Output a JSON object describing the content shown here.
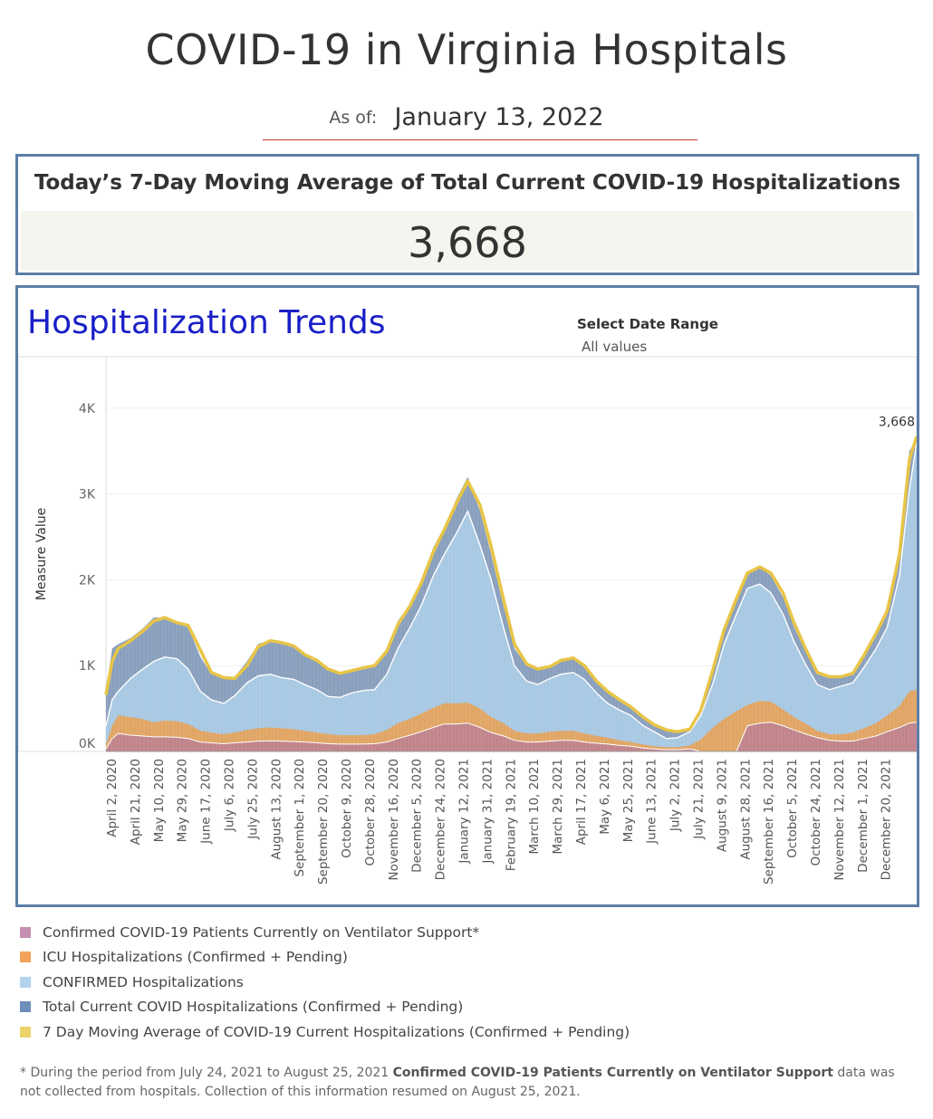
{
  "header": {
    "title": "COVID-19 in Virginia Hospitals",
    "asof_label": "As of:",
    "asof_date": "January 13, 2022"
  },
  "kpi": {
    "label": "Today’s 7-Day Moving Average of Total Current COVID-19 Hospitalizations",
    "value": "3,668"
  },
  "trends": {
    "title": "Hospitalization Trends",
    "date_range_label": "Select Date Range",
    "date_range_value": "All values",
    "last_value_label": "3,668"
  },
  "colors": {
    "ventilator": "#c0848a",
    "icu": "#e0a564",
    "confirmed": "#a8c8e3",
    "total": "#7c95b6",
    "moving_avg": "#e8c547"
  },
  "legend": [
    {
      "label": "Confirmed COVID-19 Patients Currently on Ventilator Support*",
      "color": "#c48fb0"
    },
    {
      "label": "ICU Hospitalizations (Confirmed + Pending)",
      "color": "#f2a25a"
    },
    {
      "label": "CONFIRMED Hospitalizations",
      "color": "#b3d3ef"
    },
    {
      "label": "Total Current COVID Hospitalizations (Confirmed + Pending)",
      "color": "#6e8fbb"
    },
    {
      "label": "7 Day Moving Average of COVID-19 Current Hospitalizations (Confirmed + Pending)",
      "color": "#ecd46a"
    }
  ],
  "footnote": {
    "prefix": "* During the period from July 24, 2021 to August 25, 2021 ",
    "bold": "Confirmed COVID-19 Patients Currently on Ventilator Support",
    "suffix": " data was not collected from hospitals. Collection of this information resumed on August 25, 2021."
  },
  "chart_data": {
    "type": "area",
    "ylabel": "Measure Value",
    "y_ticks": [
      "0K",
      "1K",
      "2K",
      "3K",
      "4K"
    ],
    "ylim": [
      0,
      4600
    ],
    "x_ticks": [
      "April 2, 2020",
      "April 21, 2020",
      "May 10, 2020",
      "May 29, 2020",
      "June 17, 2020",
      "July 6, 2020",
      "July 25, 2020",
      "August 13, 2020",
      "September 1, 2020",
      "September 20, 2020",
      "October 9, 2020",
      "October 28, 2020",
      "November 16, 2020",
      "December 5, 2020",
      "December 24, 2020",
      "January 12, 2021",
      "January 31, 2021",
      "February 19, 2021",
      "March 10, 2021",
      "March 29, 2021",
      "April 17, 2021",
      "May 6, 2021",
      "May 25, 2021",
      "June 13, 2021",
      "July 2, 2021",
      "July 21, 2021",
      "August 9, 2021",
      "August 28, 2021",
      "September 16, 2021",
      "October 5, 2021",
      "October 24, 2021",
      "November 12, 2021",
      "December 1, 2021",
      "December 20, 2021"
    ],
    "dates": [
      "2020-03-23",
      "2020-03-28",
      "2020-04-02",
      "2020-04-12",
      "2020-04-21",
      "2020-05-01",
      "2020-05-10",
      "2020-05-20",
      "2020-05-29",
      "2020-06-08",
      "2020-06-17",
      "2020-06-27",
      "2020-07-06",
      "2020-07-16",
      "2020-07-25",
      "2020-08-04",
      "2020-08-13",
      "2020-08-23",
      "2020-09-01",
      "2020-09-11",
      "2020-09-20",
      "2020-09-30",
      "2020-10-09",
      "2020-10-19",
      "2020-10-28",
      "2020-11-07",
      "2020-11-16",
      "2020-11-26",
      "2020-12-05",
      "2020-12-15",
      "2020-12-24",
      "2021-01-03",
      "2021-01-12",
      "2021-01-22",
      "2021-01-31",
      "2021-02-10",
      "2021-02-19",
      "2021-03-01",
      "2021-03-10",
      "2021-03-20",
      "2021-03-29",
      "2021-04-08",
      "2021-04-17",
      "2021-04-27",
      "2021-05-06",
      "2021-05-16",
      "2021-05-25",
      "2021-06-04",
      "2021-06-13",
      "2021-06-23",
      "2021-07-02",
      "2021-07-12",
      "2021-07-21",
      "2021-07-31",
      "2021-08-09",
      "2021-08-19",
      "2021-08-28",
      "2021-09-07",
      "2021-09-16",
      "2021-09-26",
      "2021-10-05",
      "2021-10-15",
      "2021-10-24",
      "2021-11-03",
      "2021-11-12",
      "2021-11-22",
      "2021-12-01",
      "2021-12-11",
      "2021-12-20",
      "2021-12-30",
      "2022-01-07",
      "2022-01-13"
    ],
    "series": [
      {
        "name": "Total Current COVID Hospitalizations (Confirmed + Pending)",
        "values": [
          700,
          1200,
          1250,
          1320,
          1420,
          1560,
          1560,
          1500,
          1450,
          1100,
          900,
          850,
          870,
          1050,
          1250,
          1300,
          1250,
          1220,
          1120,
          1050,
          950,
          900,
          950,
          980,
          1000,
          1200,
          1520,
          1720,
          2000,
          2380,
          2620,
          2950,
          3200,
          2800,
          2300,
          1700,
          1200,
          1000,
          950,
          1000,
          1080,
          1100,
          980,
          800,
          680,
          580,
          500,
          380,
          300,
          240,
          230,
          270,
          520,
          1000,
          1450,
          1800,
          2100,
          2150,
          2050,
          1800,
          1450,
          1150,
          900,
          850,
          880,
          920,
          1150,
          1400,
          1680,
          2400,
          3500,
          3650
        ]
      },
      {
        "name": "CONFIRMED Hospitalizations",
        "values": [
          300,
          600,
          700,
          850,
          950,
          1050,
          1100,
          1080,
          960,
          700,
          600,
          560,
          650,
          800,
          880,
          900,
          860,
          840,
          780,
          720,
          640,
          630,
          680,
          710,
          720,
          900,
          1200,
          1450,
          1700,
          2050,
          2300,
          2550,
          2800,
          2400,
          2000,
          1450,
          1000,
          820,
          780,
          850,
          900,
          920,
          840,
          680,
          560,
          480,
          420,
          300,
          230,
          150,
          160,
          230,
          420,
          800,
          1250,
          1600,
          1900,
          1950,
          1850,
          1600,
          1280,
          1000,
          780,
          720,
          760,
          800,
          980,
          1200,
          1450,
          2050,
          3050,
          3600
        ]
      },
      {
        "name": "ICU Hospitalizations (Confirmed + Pending)",
        "values": [
          80,
          300,
          420,
          400,
          380,
          340,
          360,
          350,
          320,
          240,
          220,
          200,
          220,
          250,
          270,
          280,
          270,
          260,
          240,
          220,
          200,
          190,
          190,
          190,
          200,
          250,
          330,
          380,
          440,
          510,
          560,
          560,
          570,
          500,
          400,
          330,
          240,
          210,
          210,
          230,
          240,
          240,
          210,
          180,
          160,
          130,
          110,
          80,
          60,
          50,
          50,
          70,
          140,
          280,
          380,
          470,
          540,
          590,
          580,
          490,
          400,
          320,
          240,
          200,
          200,
          220,
          270,
          330,
          420,
          530,
          700,
          720
        ]
      },
      {
        "name": "Confirmed COVID-19 Patients Currently on Ventilator Support*",
        "values": [
          30,
          150,
          210,
          190,
          180,
          170,
          170,
          165,
          150,
          110,
          100,
          90,
          100,
          110,
          120,
          125,
          120,
          115,
          110,
          100,
          90,
          85,
          85,
          85,
          90,
          110,
          150,
          190,
          230,
          280,
          320,
          320,
          330,
          280,
          220,
          180,
          130,
          110,
          110,
          120,
          130,
          130,
          110,
          95,
          85,
          70,
          60,
          40,
          30,
          20,
          20,
          30,
          0,
          0,
          0,
          0,
          300,
          330,
          340,
          300,
          250,
          200,
          160,
          130,
          120,
          120,
          150,
          180,
          230,
          280,
          330,
          340
        ]
      },
      {
        "name": "7 Day Moving Average of COVID-19 Current Hospitalizations (Confirmed + Pending)",
        "values": [
          660,
          1050,
          1200,
          1290,
          1390,
          1520,
          1560,
          1500,
          1470,
          1180,
          920,
          860,
          850,
          1000,
          1220,
          1290,
          1270,
          1230,
          1130,
          1060,
          960,
          910,
          940,
          975,
          1000,
          1170,
          1480,
          1700,
          1960,
          2330,
          2590,
          2900,
          3150,
          2870,
          2390,
          1780,
          1250,
          1020,
          960,
          990,
          1060,
          1090,
          1000,
          820,
          700,
          600,
          520,
          400,
          310,
          250,
          230,
          260,
          480,
          960,
          1420,
          1780,
          2080,
          2150,
          2080,
          1850,
          1500,
          1180,
          920,
          870,
          870,
          910,
          1120,
          1380,
          1640,
          2300,
          3400,
          3668
        ]
      }
    ]
  }
}
